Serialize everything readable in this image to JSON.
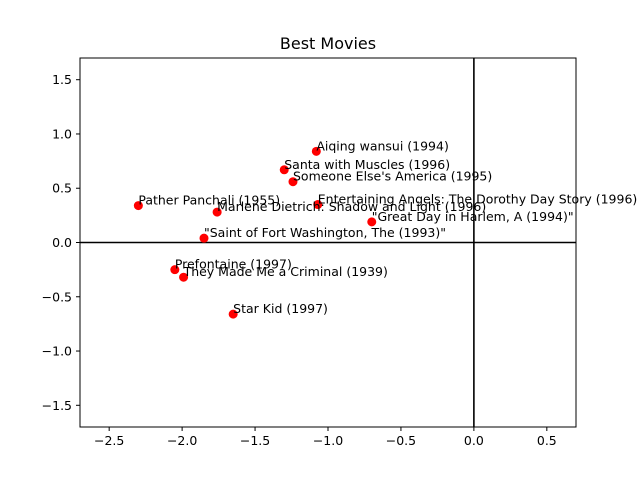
{
  "chart_data": {
    "type": "scatter",
    "title": "Best Movies",
    "xlabel": "",
    "ylabel": "",
    "xlim": [
      -2.7,
      0.7
    ],
    "ylim": [
      -1.7,
      1.7
    ],
    "xticks": [
      -2.5,
      -2.0,
      -1.5,
      -1.0,
      -0.5,
      0.0,
      0.5
    ],
    "xtick_labels": [
      "−2.5",
      "−2.0",
      "−1.5",
      "−1.0",
      "−0.5",
      "0.0",
      "0.5"
    ],
    "yticks": [
      -1.5,
      -1.0,
      -0.5,
      0.0,
      0.5,
      1.0,
      1.5
    ],
    "ytick_labels": [
      "−1.5",
      "−1.0",
      "−0.5",
      "0.0",
      "0.5",
      "1.0",
      "1.5"
    ],
    "grid": false,
    "zero_lines": true,
    "point_color": "#ff0000",
    "points": [
      {
        "label": "Aiqing wansui (1994)",
        "x": -1.08,
        "y": 0.84
      },
      {
        "label": "Santa with Muscles (1996)",
        "x": -1.3,
        "y": 0.67
      },
      {
        "label": "Someone Else's America (1995)",
        "x": -1.24,
        "y": 0.56
      },
      {
        "label": "Pather Panchali (1955)",
        "x": -2.3,
        "y": 0.34
      },
      {
        "label": "Marlene Dietrich: Shadow and Light (1996)",
        "x": -1.76,
        "y": 0.28
      },
      {
        "label": "Entertaining Angels: The Dorothy Day Story (1996)",
        "x": -1.07,
        "y": 0.35
      },
      {
        "label": "\"Great Day in Harlem, A (1994)\"",
        "x": -0.7,
        "y": 0.19
      },
      {
        "label": "\"Saint of Fort Washington, The (1993)\"",
        "x": -1.85,
        "y": 0.04
      },
      {
        "label": "Prefontaine (1997)",
        "x": -2.05,
        "y": -0.25
      },
      {
        "label": "They Made Me a Criminal (1939)",
        "x": -1.99,
        "y": -0.32
      },
      {
        "label": "Star Kid (1997)",
        "x": -1.65,
        "y": -0.66
      }
    ]
  }
}
